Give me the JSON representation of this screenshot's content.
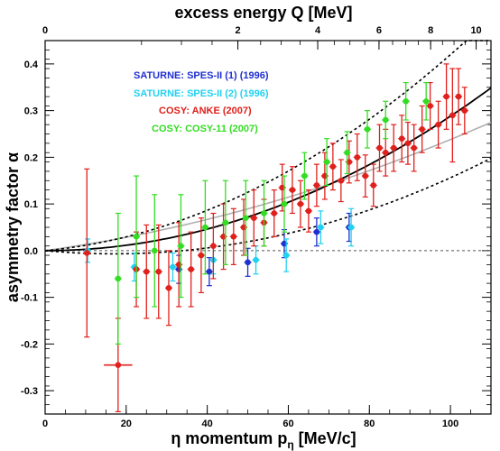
{
  "chart_data": {
    "type": "scatter",
    "top_axis_title": "excess energy Q [MeV]",
    "top_ticks": [
      {
        "q": 0,
        "label": "0"
      },
      {
        "q": 2,
        "label": "2"
      },
      {
        "q": 4,
        "label": "4"
      },
      {
        "q": 6,
        "label": "6"
      },
      {
        "q": 8,
        "label": "8"
      },
      {
        "q": 10,
        "label": "10"
      }
    ],
    "xlabel": "η momentum p",
    "xlabel_sub": "η",
    "xlabel_unit": " [MeV/c]",
    "ylabel": "asymmetry factor α",
    "xlim": [
      0,
      110
    ],
    "ylim": [
      -0.35,
      0.45
    ],
    "x_ticks": [
      0,
      20,
      40,
      60,
      80,
      100
    ],
    "y_ticks": [
      -0.3,
      -0.2,
      -0.1,
      0.0,
      0.1,
      0.2,
      0.3,
      0.4
    ],
    "tick_labels": {
      "-0.3": "-0.3",
      "-0.2": "-0.2",
      "-0.1": "-0.1",
      "0": "0.0",
      "0.1": "0.1",
      "0.2": "0.2",
      "0.3": "0.3",
      "0.4": "0.4"
    },
    "legend": [
      {
        "label": "SATURNE: SPES-II (1) (1996)",
        "color": "#1f2fd0"
      },
      {
        "label": "SATURNE: SPES-II (2) (1996)",
        "color": "#22d0f0"
      },
      {
        "label": "COSY: ANKE (2007)",
        "color": "#e0201c"
      },
      {
        "label": "COSY: COSY-11 (2007)",
        "color": "#33dd22"
      }
    ],
    "fit": {
      "coeff": 2.88e-05,
      "band_lo": 0.82,
      "band_hi": 1.18
    },
    "fit_gray": {
      "a": 0.0012,
      "b": 1.18e-05
    },
    "series": [
      {
        "color": "#1f2fd0",
        "points": [
          [
            33,
            -0.04,
            0.03
          ],
          [
            40.5,
            -0.045,
            0.03
          ],
          [
            50,
            -0.025,
            0.03
          ],
          [
            59,
            0.015,
            0.03
          ],
          [
            67,
            0.04,
            0.03
          ],
          [
            75,
            0.05,
            0.03
          ]
        ]
      },
      {
        "color": "#22d0f0",
        "points": [
          [
            10.5,
            0.0,
            0.025
          ],
          [
            22,
            -0.035,
            0.03
          ],
          [
            31.5,
            -0.035,
            0.03
          ],
          [
            41.5,
            -0.02,
            0.03
          ],
          [
            52,
            -0.02,
            0.03
          ],
          [
            59.5,
            -0.01,
            0.035
          ],
          [
            68,
            0.05,
            0.035
          ],
          [
            75.5,
            0.05,
            0.04
          ]
        ]
      },
      {
        "color": "#e0201c",
        "points": [
          [
            10.3,
            -0.005,
            0.18
          ],
          [
            18,
            -0.245,
            0.1
          ],
          [
            22.5,
            -0.04,
            0.08
          ],
          [
            25,
            -0.045,
            0.1
          ],
          [
            28,
            -0.045,
            0.1
          ],
          [
            30.5,
            -0.08,
            0.08
          ],
          [
            33,
            -0.03,
            0.09
          ],
          [
            36,
            -0.04,
            0.08
          ],
          [
            38.5,
            -0.01,
            0.08
          ],
          [
            41.5,
            0.01,
            0.07
          ],
          [
            44,
            0.03,
            0.07
          ],
          [
            46.5,
            0.03,
            0.06
          ],
          [
            49,
            0.05,
            0.06
          ],
          [
            51.5,
            0.07,
            0.06
          ],
          [
            54,
            0.06,
            0.05
          ],
          [
            56.5,
            0.08,
            0.05
          ],
          [
            58.5,
            0.135,
            0.05
          ],
          [
            61,
            0.13,
            0.05
          ],
          [
            63,
            0.1,
            0.05
          ],
          [
            65,
            0.085,
            0.045
          ],
          [
            67,
            0.14,
            0.045
          ],
          [
            69,
            0.16,
            0.05
          ],
          [
            71,
            0.18,
            0.05
          ],
          [
            73,
            0.15,
            0.045
          ],
          [
            75,
            0.19,
            0.045
          ],
          [
            77,
            0.2,
            0.05
          ],
          [
            79,
            0.16,
            0.045
          ],
          [
            81,
            0.14,
            0.045
          ],
          [
            82.5,
            0.22,
            0.05
          ],
          [
            84,
            0.21,
            0.05
          ],
          [
            86,
            0.22,
            0.05
          ],
          [
            88,
            0.24,
            0.05
          ],
          [
            89.5,
            0.23,
            0.045
          ],
          [
            91,
            0.22,
            0.05
          ],
          [
            93,
            0.26,
            0.05
          ],
          [
            95,
            0.31,
            0.05
          ],
          [
            97,
            0.27,
            0.05
          ],
          [
            99,
            0.33,
            0.07
          ],
          [
            100.5,
            0.29,
            0.1
          ],
          [
            102,
            0.33,
            0.06
          ],
          [
            103.5,
            0.3,
            0.05
          ]
        ]
      },
      {
        "color": "#33dd22",
        "points": [
          [
            18,
            -0.06,
            0.14
          ],
          [
            22.5,
            0.03,
            0.13
          ],
          [
            27,
            0.0,
            0.12
          ],
          [
            33.5,
            0.01,
            0.11
          ],
          [
            39.5,
            0.05,
            0.1
          ],
          [
            44.5,
            0.06,
            0.09
          ],
          [
            49.5,
            0.07,
            0.08
          ],
          [
            54,
            0.08,
            0.07
          ],
          [
            59,
            0.1,
            0.06
          ],
          [
            64,
            0.16,
            0.05
          ],
          [
            69.5,
            0.19,
            0.05
          ],
          [
            74.5,
            0.21,
            0.045
          ],
          [
            79.5,
            0.26,
            0.04
          ],
          [
            84,
            0.28,
            0.04
          ],
          [
            89,
            0.32,
            0.04
          ],
          [
            94,
            0.32,
            0.04
          ]
        ]
      }
    ]
  }
}
